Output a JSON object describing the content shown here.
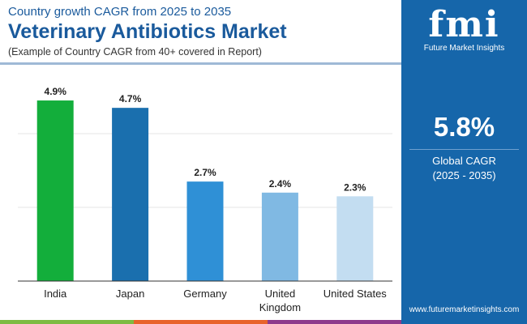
{
  "header": {
    "subtitle": "Country growth CAGR from 2025 to 2035",
    "title": "Veterinary Antibiotics Market",
    "note": "(Example of Country CAGR from 40+ covered in Report)"
  },
  "brand": {
    "logo_text": "fmi",
    "name": "Future Market Insights",
    "url": "www.futuremarketinsights.com"
  },
  "summary": {
    "value": "5.8%",
    "label": "Global CAGR",
    "period": "(2025 - 2035)"
  },
  "colors": {
    "panel": "#1666aa",
    "strip": [
      "#7dbb42",
      "#e8632b",
      "#8e3a8c"
    ]
  },
  "chart_data": {
    "type": "bar",
    "title": "Veterinary Antibiotics Market",
    "categories": [
      "India",
      "Japan",
      "Germany",
      "United Kingdom",
      "United States"
    ],
    "labels": [
      [
        "India"
      ],
      [
        "Japan"
      ],
      [
        "Germany"
      ],
      [
        "United",
        "Kingdom"
      ],
      [
        "United States"
      ]
    ],
    "values": [
      4.9,
      4.7,
      2.7,
      2.4,
      2.3
    ],
    "data_labels": [
      "4.9%",
      "4.7%",
      "2.7%",
      "2.4%",
      "2.3%"
    ],
    "colors": [
      "#13ae3b",
      "#1a6fae",
      "#2f90d6",
      "#80b9e3",
      "#c3ddf1"
    ],
    "ylim": [
      0,
      6
    ],
    "gridlines": [
      2,
      4
    ],
    "xlabel": "",
    "ylabel": ""
  }
}
